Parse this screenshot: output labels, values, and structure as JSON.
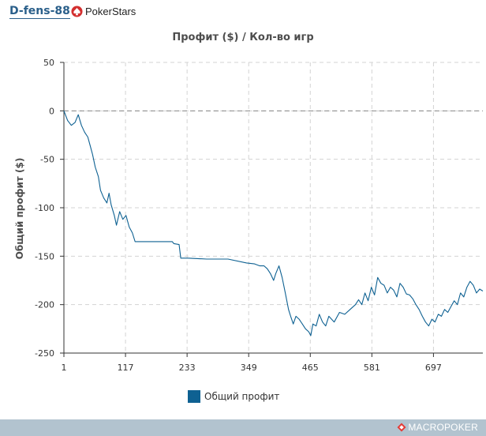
{
  "header": {
    "player_name": "D-fens-88",
    "room_label": "PokerStars",
    "room_icon": "pokerstars-spade-icon"
  },
  "chart_data": {
    "type": "line",
    "title": "Профит ($) / Кол-во игр",
    "xlabel": "",
    "ylabel": "Общий профит ($)",
    "xlim": [
      1,
      790
    ],
    "ylim": [
      -250,
      50
    ],
    "x_ticks": [
      1,
      117,
      233,
      349,
      465,
      581,
      697
    ],
    "y_ticks": [
      50,
      0,
      -50,
      -100,
      -150,
      -200,
      -250
    ],
    "grid": true,
    "zero_line": true,
    "legend_position": "bottom-center",
    "series": [
      {
        "name": "Общий профит",
        "color": "#0e6192",
        "points": [
          [
            1,
            0
          ],
          [
            8,
            -10
          ],
          [
            15,
            -15
          ],
          [
            22,
            -12
          ],
          [
            28,
            -4
          ],
          [
            34,
            -15
          ],
          [
            40,
            -22
          ],
          [
            46,
            -27
          ],
          [
            50,
            -35
          ],
          [
            55,
            -45
          ],
          [
            60,
            -58
          ],
          [
            66,
            -68
          ],
          [
            70,
            -82
          ],
          [
            76,
            -90
          ],
          [
            82,
            -95
          ],
          [
            86,
            -85
          ],
          [
            90,
            -97
          ],
          [
            96,
            -108
          ],
          [
            100,
            -118
          ],
          [
            106,
            -104
          ],
          [
            112,
            -112
          ],
          [
            118,
            -108
          ],
          [
            124,
            -120
          ],
          [
            130,
            -126
          ],
          [
            135,
            -135
          ],
          [
            170,
            -135
          ],
          [
            205,
            -135
          ],
          [
            208,
            -137
          ],
          [
            218,
            -138
          ],
          [
            221,
            -152
          ],
          [
            235,
            -152
          ],
          [
            270,
            -153
          ],
          [
            310,
            -153
          ],
          [
            345,
            -157
          ],
          [
            360,
            -158
          ],
          [
            370,
            -160
          ],
          [
            378,
            -160
          ],
          [
            384,
            -163
          ],
          [
            390,
            -168
          ],
          [
            396,
            -175
          ],
          [
            400,
            -168
          ],
          [
            406,
            -160
          ],
          [
            412,
            -172
          ],
          [
            418,
            -188
          ],
          [
            424,
            -205
          ],
          [
            428,
            -212
          ],
          [
            433,
            -220
          ],
          [
            438,
            -212
          ],
          [
            444,
            -215
          ],
          [
            450,
            -220
          ],
          [
            456,
            -225
          ],
          [
            462,
            -228
          ],
          [
            466,
            -232
          ],
          [
            470,
            -220
          ],
          [
            476,
            -222
          ],
          [
            482,
            -210
          ],
          [
            488,
            -218
          ],
          [
            494,
            -222
          ],
          [
            500,
            -212
          ],
          [
            510,
            -218
          ],
          [
            520,
            -208
          ],
          [
            530,
            -210
          ],
          [
            540,
            -205
          ],
          [
            550,
            -200
          ],
          [
            556,
            -195
          ],
          [
            562,
            -200
          ],
          [
            568,
            -188
          ],
          [
            574,
            -196
          ],
          [
            580,
            -182
          ],
          [
            586,
            -190
          ],
          [
            592,
            -172
          ],
          [
            598,
            -178
          ],
          [
            604,
            -180
          ],
          [
            610,
            -188
          ],
          [
            616,
            -182
          ],
          [
            622,
            -185
          ],
          [
            628,
            -192
          ],
          [
            634,
            -178
          ],
          [
            640,
            -182
          ],
          [
            646,
            -189
          ],
          [
            652,
            -190
          ],
          [
            658,
            -194
          ],
          [
            664,
            -200
          ],
          [
            670,
            -205
          ],
          [
            676,
            -212
          ],
          [
            682,
            -218
          ],
          [
            688,
            -222
          ],
          [
            694,
            -215
          ],
          [
            700,
            -218
          ],
          [
            706,
            -210
          ],
          [
            712,
            -212
          ],
          [
            718,
            -205
          ],
          [
            724,
            -208
          ],
          [
            730,
            -202
          ],
          [
            736,
            -196
          ],
          [
            742,
            -200
          ],
          [
            748,
            -188
          ],
          [
            754,
            -192
          ],
          [
            760,
            -182
          ],
          [
            766,
            -176
          ],
          [
            772,
            -180
          ],
          [
            778,
            -188
          ],
          [
            784,
            -184
          ],
          [
            790,
            -186
          ]
        ]
      }
    ]
  },
  "legend": {
    "label": "Общий профит",
    "swatch_color": "#0e6192"
  },
  "footer": {
    "brand_label": "MACROPOKER",
    "brand_icon": "macropoker-logo-icon"
  }
}
